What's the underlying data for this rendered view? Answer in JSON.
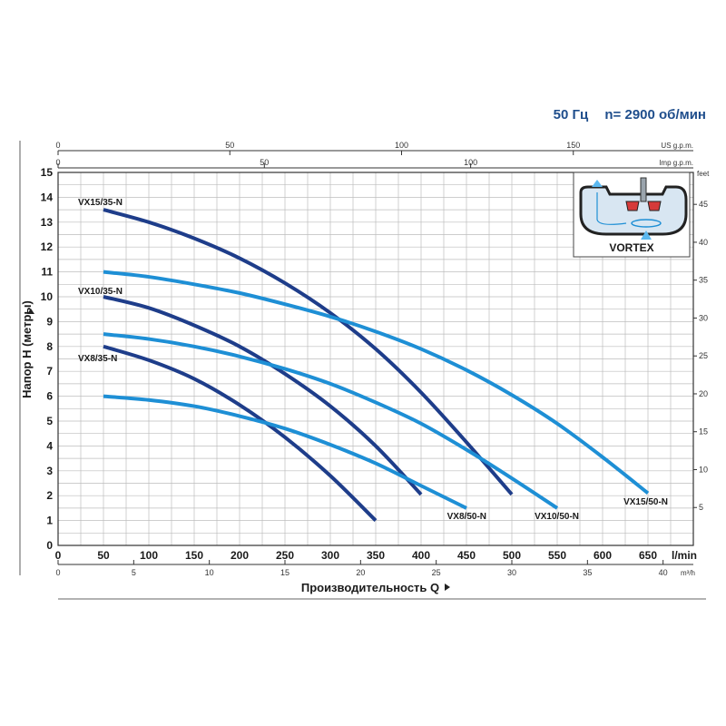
{
  "header": {
    "frequency": "50 Гц",
    "speed": "n= 2900 об/мин"
  },
  "colors": {
    "dark_blue": "#1e3d8a",
    "light_blue": "#1e8fd5",
    "grid": "#bdbdbd",
    "text": "#1a1a1a"
  },
  "chart_data": {
    "type": "line",
    "xlabel": "Производительность Q",
    "ylabel": "Напор H (метры)",
    "x_unit": "l/min",
    "xlim": [
      0,
      700
    ],
    "ylim": [
      0,
      15
    ],
    "x_ticks": [
      0,
      50,
      100,
      150,
      200,
      250,
      300,
      350,
      400,
      450,
      500,
      550,
      600,
      650
    ],
    "y_ticks": [
      0,
      1,
      2,
      3,
      4,
      5,
      6,
      7,
      8,
      9,
      10,
      11,
      12,
      13,
      14,
      15
    ],
    "secondary_axes": {
      "m3h": {
        "unit": "m³/h",
        "ticks": [
          0,
          5,
          10,
          15,
          20,
          25,
          30,
          35,
          40
        ]
      },
      "us_gpm": {
        "unit": "US g.p.m.",
        "ticks": [
          0,
          50,
          100,
          150
        ]
      },
      "imp_gpm": {
        "unit": "Imp g.p.m.",
        "ticks": [
          0,
          50,
          100
        ]
      },
      "feet": {
        "unit": "feet",
        "ticks": [
          5,
          10,
          15,
          20,
          25,
          30,
          35,
          40,
          45
        ]
      }
    },
    "grid": true,
    "inset_label": "VORTEX",
    "series": [
      {
        "name": "VX15/35-N",
        "color": "dark",
        "x": [
          50,
          100,
          150,
          200,
          250,
          300,
          350,
          400,
          450,
          500
        ],
        "y": [
          13.5,
          13.0,
          12.35,
          11.55,
          10.55,
          9.35,
          7.9,
          6.15,
          4.15,
          2.05
        ]
      },
      {
        "name": "VX10/35-N",
        "color": "dark",
        "x": [
          50,
          100,
          150,
          200,
          250,
          300,
          350,
          400
        ],
        "y": [
          10.0,
          9.55,
          8.85,
          8.0,
          6.9,
          5.6,
          4.0,
          2.05
        ]
      },
      {
        "name": "VX8/35-N",
        "color": "dark",
        "x": [
          50,
          100,
          150,
          200,
          250,
          300,
          350
        ],
        "y": [
          8.0,
          7.45,
          6.7,
          5.65,
          4.35,
          2.8,
          1.0
        ]
      },
      {
        "name": "VX15/50-N",
        "color": "light",
        "x": [
          50,
          100,
          150,
          200,
          250,
          300,
          350,
          400,
          450,
          500,
          550,
          600,
          650
        ],
        "y": [
          11.0,
          10.8,
          10.5,
          10.15,
          9.7,
          9.2,
          8.6,
          7.9,
          7.05,
          6.05,
          4.9,
          3.55,
          2.1
        ]
      },
      {
        "name": "VX10/50-N",
        "color": "light",
        "x": [
          50,
          100,
          150,
          200,
          250,
          300,
          350,
          400,
          450,
          500,
          550
        ],
        "y": [
          8.5,
          8.3,
          8.0,
          7.6,
          7.1,
          6.5,
          5.75,
          4.9,
          3.85,
          2.7,
          1.5
        ]
      },
      {
        "name": "VX8/50-N",
        "color": "light",
        "x": [
          50,
          100,
          150,
          200,
          250,
          300,
          350,
          400,
          450
        ],
        "y": [
          6.0,
          5.85,
          5.6,
          5.2,
          4.7,
          4.05,
          3.3,
          2.4,
          1.5
        ]
      }
    ]
  }
}
